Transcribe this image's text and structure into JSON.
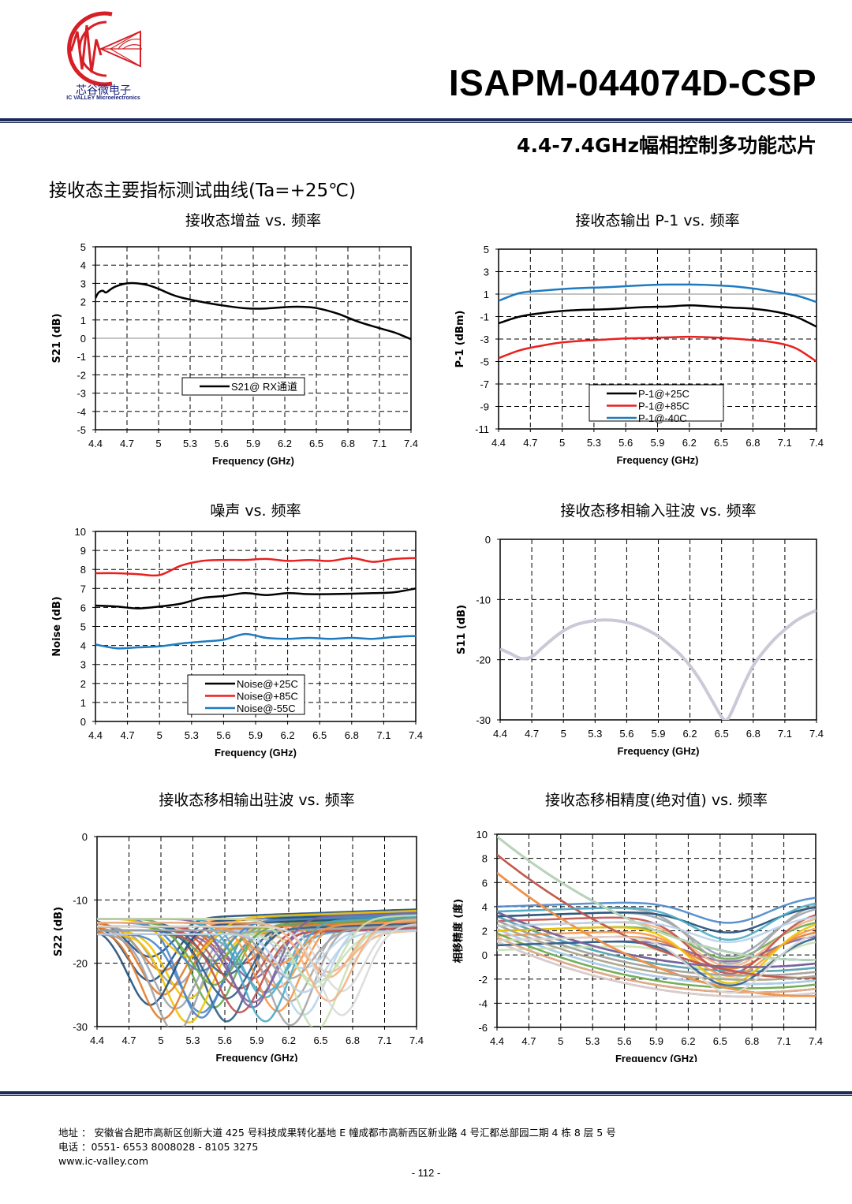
{
  "header": {
    "logo_cn": "芯谷微电子",
    "logo_en": "IC VALLEY Microelectronics",
    "part_number": "ISAPM-044074D-CSP",
    "subtitle": "4.4-7.4GHz幅相控制多功能芯片"
  },
  "section_title": "接收态主要指标测试曲线(Ta=+25℃)",
  "colors": {
    "black": "#000000",
    "red": "#e8201f",
    "blue": "#1f7bc0",
    "rule": "#1c2a5a"
  },
  "chart_data": [
    {
      "type": "line",
      "title": "接收态增益 vs. 频率",
      "xlabel": "Frequency (GHz)",
      "ylabel": "S21 (dB)",
      "xlim": [
        4.4,
        7.4
      ],
      "ylim": [
        -5,
        5
      ],
      "xticks": [
        "4.4",
        "4.7",
        "5",
        "5.3",
        "5.6",
        "5.9",
        "6.2",
        "6.5",
        "6.8",
        "7.1",
        "7.4"
      ],
      "yticks": [
        "5",
        "4",
        "3",
        "2",
        "1",
        "0",
        "-1",
        "-2",
        "-3",
        "-4",
        "-5"
      ],
      "legend_position": "bottom-left",
      "series": [
        {
          "name": "S21@ RX通道",
          "color": "#000000",
          "x": [
            4.4,
            4.43,
            4.47,
            4.5,
            4.55,
            4.6,
            4.7,
            4.8,
            4.9,
            5.0,
            5.1,
            5.2,
            5.4,
            5.6,
            5.8,
            6.0,
            6.2,
            6.35,
            6.5,
            6.7,
            6.9,
            7.1,
            7.25,
            7.4
          ],
          "y": [
            2.2,
            2.5,
            2.6,
            2.5,
            2.7,
            2.85,
            3.0,
            3.0,
            2.9,
            2.7,
            2.45,
            2.25,
            2.0,
            1.8,
            1.65,
            1.62,
            1.7,
            1.72,
            1.65,
            1.35,
            0.9,
            0.55,
            0.3,
            -0.05
          ]
        }
      ]
    },
    {
      "type": "line",
      "title": "接收态输出 P-1 vs. 频率",
      "xlabel": "Frequency (GHz)",
      "ylabel": "P-1 (dBm)",
      "xlim": [
        4.4,
        7.4
      ],
      "ylim": [
        -11,
        5
      ],
      "xticks": [
        "4.4",
        "4.7",
        "5",
        "5.3",
        "5.6",
        "5.9",
        "6.2",
        "6.5",
        "6.8",
        "7.1",
        "7.4"
      ],
      "yticks": [
        "5",
        "3",
        "1",
        "-1",
        "-3",
        "-5",
        "-7",
        "-9",
        "-11"
      ],
      "legend_position": "bottom-center",
      "series": [
        {
          "name": "P-1@+25C",
          "color": "#000000",
          "x": [
            4.4,
            4.6,
            4.8,
            5.0,
            5.2,
            5.4,
            5.6,
            5.8,
            6.0,
            6.2,
            6.4,
            6.6,
            6.8,
            7.0,
            7.2,
            7.4
          ],
          "y": [
            -1.6,
            -1.0,
            -0.7,
            -0.5,
            -0.4,
            -0.35,
            -0.25,
            -0.15,
            -0.1,
            0.0,
            -0.1,
            -0.2,
            -0.3,
            -0.55,
            -1.0,
            -1.9
          ]
        },
        {
          "name": "P-1@+85C",
          "color": "#e8201f",
          "x": [
            4.4,
            4.6,
            4.8,
            5.0,
            5.2,
            5.4,
            5.6,
            5.8,
            6.0,
            6.2,
            6.4,
            6.6,
            6.8,
            7.0,
            7.2,
            7.4
          ],
          "y": [
            -4.7,
            -4.0,
            -3.6,
            -3.3,
            -3.15,
            -3.05,
            -2.95,
            -2.9,
            -2.85,
            -2.8,
            -2.85,
            -2.95,
            -3.1,
            -3.3,
            -3.8,
            -5.0
          ]
        },
        {
          "name": "P-1@-40C",
          "color": "#1f7bc0",
          "x": [
            4.4,
            4.6,
            4.8,
            5.0,
            5.2,
            5.4,
            5.6,
            5.8,
            6.0,
            6.2,
            6.4,
            6.6,
            6.8,
            7.0,
            7.2,
            7.4
          ],
          "y": [
            0.4,
            1.1,
            1.3,
            1.45,
            1.55,
            1.6,
            1.7,
            1.8,
            1.85,
            1.85,
            1.8,
            1.7,
            1.5,
            1.2,
            0.9,
            0.3
          ]
        }
      ]
    },
    {
      "type": "line",
      "title": "噪声 vs. 频率",
      "xlabel": "Frequency (GHz)",
      "ylabel": "Noise (dB)",
      "xlim": [
        4.4,
        7.4
      ],
      "ylim": [
        0,
        10
      ],
      "xticks": [
        "4.4",
        "4.7",
        "5",
        "5.3",
        "5.6",
        "5.9",
        "6.2",
        "6.5",
        "6.8",
        "7.1",
        "7.4"
      ],
      "yticks": [
        "10",
        "9",
        "8",
        "7",
        "6",
        "5",
        "4",
        "3",
        "2",
        "1",
        "0"
      ],
      "legend_position": "bottom-center",
      "series": [
        {
          "name": "Noise@+25C",
          "color": "#000000",
          "x": [
            4.4,
            4.6,
            4.8,
            5.0,
            5.2,
            5.4,
            5.6,
            5.8,
            6.0,
            6.2,
            6.4,
            6.6,
            6.8,
            7.0,
            7.2,
            7.4
          ],
          "y": [
            6.1,
            6.05,
            5.95,
            6.05,
            6.2,
            6.5,
            6.6,
            6.75,
            6.65,
            6.75,
            6.7,
            6.7,
            6.72,
            6.75,
            6.8,
            7.0
          ]
        },
        {
          "name": "Noise@+85C",
          "color": "#e8201f",
          "x": [
            4.4,
            4.6,
            4.8,
            5.0,
            5.2,
            5.4,
            5.6,
            5.8,
            6.0,
            6.2,
            6.4,
            6.6,
            6.8,
            7.0,
            7.2,
            7.4
          ],
          "y": [
            7.8,
            7.8,
            7.75,
            7.7,
            8.2,
            8.45,
            8.5,
            8.5,
            8.55,
            8.45,
            8.5,
            8.45,
            8.6,
            8.4,
            8.55,
            8.6
          ]
        },
        {
          "name": "Noise@-55C",
          "color": "#1f7bc0",
          "x": [
            4.4,
            4.6,
            4.8,
            5.0,
            5.2,
            5.4,
            5.6,
            5.8,
            6.0,
            6.2,
            6.4,
            6.6,
            6.8,
            7.0,
            7.2,
            7.4
          ],
          "y": [
            4.05,
            3.85,
            3.9,
            3.95,
            4.1,
            4.2,
            4.3,
            4.6,
            4.4,
            4.35,
            4.4,
            4.35,
            4.4,
            4.35,
            4.45,
            4.5
          ]
        }
      ]
    },
    {
      "type": "line",
      "title": "接收态移相输入驻波 vs. 频率",
      "xlabel": "Frequency (GHz)",
      "ylabel": "S11 (dB)",
      "xlim": [
        4.4,
        7.4
      ],
      "ylim": [
        -30,
        0
      ],
      "xticks": [
        "4.4",
        "4.7",
        "5",
        "5.3",
        "5.6",
        "5.9",
        "6.2",
        "6.5",
        "6.8",
        "7.1",
        "7.4"
      ],
      "yticks": [
        "0",
        "-10",
        "-20",
        "-30"
      ],
      "series": [
        {
          "color": "#c9c9d9",
          "x": [
            4.4,
            4.5,
            4.6,
            4.7,
            4.8,
            4.9,
            5.0,
            5.1,
            5.2,
            5.3,
            5.4,
            5.5,
            5.6,
            5.7,
            5.8,
            5.9,
            6.0,
            6.1,
            6.2,
            6.3,
            6.4,
            6.5,
            6.55,
            6.6,
            6.7,
            6.8,
            6.9,
            7.0,
            7.1,
            7.2,
            7.3,
            7.4
          ],
          "y": [
            -18.2,
            -19.0,
            -19.8,
            -19.5,
            -18.0,
            -16.5,
            -15.2,
            -14.3,
            -13.8,
            -13.5,
            -13.4,
            -13.5,
            -13.8,
            -14.3,
            -15.1,
            -16.1,
            -17.5,
            -19.0,
            -21.0,
            -23.5,
            -26.5,
            -29.5,
            -30.0,
            -28.5,
            -24.5,
            -21.0,
            -18.6,
            -16.6,
            -15.0,
            -13.6,
            -12.6,
            -11.8
          ]
        }
      ]
    },
    {
      "type": "line",
      "title": "接收态移相输出驻波 vs. 频率",
      "xlabel": "Frequency (GHz)",
      "ylabel": "S22 (dB)",
      "xlim": [
        4.4,
        7.4
      ],
      "ylim": [
        -30,
        0
      ],
      "xticks": [
        "4.4",
        "4.7",
        "5",
        "5.3",
        "5.6",
        "5.9",
        "6.2",
        "6.5",
        "6.8",
        "7.1",
        "7.4"
      ],
      "yticks": [
        "0",
        "-10",
        "-20",
        "-30"
      ],
      "series_note": "64 overlapping phase states"
    },
    {
      "type": "line",
      "title": "接收态移相精度(绝对值) vs. 频率",
      "xlabel": "Frequency (GHz)",
      "ylabel": "相移精度 (度)",
      "xlim": [
        4.4,
        7.4
      ],
      "ylim": [
        -6,
        10
      ],
      "xticks": [
        "4.4",
        "4.7",
        "5",
        "5.3",
        "5.6",
        "5.9",
        "6.2",
        "6.5",
        "6.8",
        "7.1",
        "7.4"
      ],
      "yticks": [
        "10",
        "8",
        "6",
        "4",
        "2",
        "0",
        "-2",
        "-4",
        "-6"
      ],
      "series_note": "64 overlapping phase states"
    }
  ],
  "footer": {
    "address": "地址 ： 安徽省合肥市高新区创新大道 425 号科技成果转化基地 E 幢成都市高新西区新业路 4 号汇都总部园二期 4 栋 8 层 5 号",
    "phone": "电话 ：0551- 6553 8008028 - 8105 3275",
    "website": "www.ic-valley.com",
    "page": "- 112 -"
  }
}
